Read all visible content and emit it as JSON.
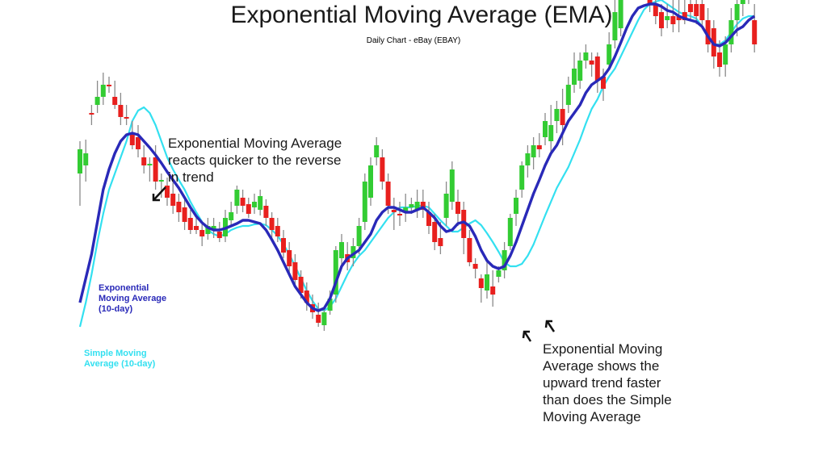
{
  "chart_data": {
    "type": "candlestick",
    "title": "Exponential Moving Average (EMA)",
    "subtitle": "Daily Chart - eBay (EBAY)",
    "candles": [
      {
        "o": 310,
        "c": 340,
        "h": 350,
        "l": 270,
        "up": true
      },
      {
        "o": 320,
        "c": 335,
        "h": 352,
        "l": 300,
        "up": true
      },
      {
        "o": 385,
        "c": 383,
        "h": 395,
        "l": 370,
        "up": false
      },
      {
        "o": 395,
        "c": 405,
        "h": 425,
        "l": 385,
        "up": true
      },
      {
        "o": 405,
        "c": 420,
        "h": 435,
        "l": 395,
        "up": true
      },
      {
        "o": 420,
        "c": 418,
        "h": 430,
        "l": 410,
        "up": false
      },
      {
        "o": 405,
        "c": 395,
        "h": 425,
        "l": 390,
        "up": false
      },
      {
        "o": 395,
        "c": 380,
        "h": 410,
        "l": 370,
        "up": false
      },
      {
        "o": 380,
        "c": 378,
        "h": 395,
        "l": 370,
        "up": false
      },
      {
        "o": 360,
        "c": 345,
        "h": 375,
        "l": 340,
        "up": false
      },
      {
        "o": 355,
        "c": 340,
        "h": 370,
        "l": 330,
        "up": false
      },
      {
        "o": 330,
        "c": 320,
        "h": 345,
        "l": 310,
        "up": false
      },
      {
        "o": 320,
        "c": 322,
        "h": 330,
        "l": 300,
        "up": true
      },
      {
        "o": 330,
        "c": 300,
        "h": 345,
        "l": 290,
        "up": false
      },
      {
        "o": 300,
        "c": 302,
        "h": 310,
        "l": 280,
        "up": true
      },
      {
        "o": 295,
        "c": 280,
        "h": 305,
        "l": 270,
        "up": false
      },
      {
        "o": 285,
        "c": 270,
        "h": 300,
        "l": 260,
        "up": false
      },
      {
        "o": 275,
        "c": 262,
        "h": 285,
        "l": 250,
        "up": false
      },
      {
        "o": 268,
        "c": 250,
        "h": 280,
        "l": 240,
        "up": false
      },
      {
        "o": 255,
        "c": 240,
        "h": 265,
        "l": 235,
        "up": false
      },
      {
        "o": 245,
        "c": 240,
        "h": 255,
        "l": 235,
        "up": false
      },
      {
        "o": 240,
        "c": 232,
        "h": 250,
        "l": 220,
        "up": false
      },
      {
        "o": 235,
        "c": 245,
        "h": 255,
        "l": 228,
        "up": true
      },
      {
        "o": 240,
        "c": 245,
        "h": 255,
        "l": 230,
        "up": true
      },
      {
        "o": 238,
        "c": 230,
        "h": 250,
        "l": 225,
        "up": false
      },
      {
        "o": 232,
        "c": 255,
        "h": 265,
        "l": 225,
        "up": true
      },
      {
        "o": 252,
        "c": 262,
        "h": 275,
        "l": 245,
        "up": true
      },
      {
        "o": 270,
        "c": 290,
        "h": 295,
        "l": 260,
        "up": true
      },
      {
        "o": 280,
        "c": 270,
        "h": 290,
        "l": 262,
        "up": false
      },
      {
        "o": 272,
        "c": 260,
        "h": 280,
        "l": 255,
        "up": false
      },
      {
        "o": 268,
        "c": 275,
        "h": 285,
        "l": 260,
        "up": true
      },
      {
        "o": 265,
        "c": 282,
        "h": 290,
        "l": 258,
        "up": true
      },
      {
        "o": 270,
        "c": 255,
        "h": 278,
        "l": 245,
        "up": false
      },
      {
        "o": 255,
        "c": 240,
        "h": 262,
        "l": 230,
        "up": false
      },
      {
        "o": 245,
        "c": 232,
        "h": 255,
        "l": 225,
        "up": false
      },
      {
        "o": 230,
        "c": 212,
        "h": 240,
        "l": 205,
        "up": false
      },
      {
        "o": 215,
        "c": 195,
        "h": 225,
        "l": 185,
        "up": false
      },
      {
        "o": 200,
        "c": 178,
        "h": 210,
        "l": 170,
        "up": false
      },
      {
        "o": 182,
        "c": 162,
        "h": 190,
        "l": 155,
        "up": false
      },
      {
        "o": 165,
        "c": 150,
        "h": 175,
        "l": 140,
        "up": false
      },
      {
        "o": 148,
        "c": 138,
        "h": 160,
        "l": 130,
        "up": false
      },
      {
        "o": 135,
        "c": 125,
        "h": 150,
        "l": 120,
        "up": false
      },
      {
        "o": 122,
        "c": 138,
        "h": 145,
        "l": 115,
        "up": true
      },
      {
        "o": 140,
        "c": 155,
        "h": 165,
        "l": 135,
        "up": true
      },
      {
        "o": 160,
        "c": 215,
        "h": 220,
        "l": 150,
        "up": true
      },
      {
        "o": 205,
        "c": 225,
        "h": 235,
        "l": 195,
        "up": true
      },
      {
        "o": 210,
        "c": 200,
        "h": 225,
        "l": 190,
        "up": false
      },
      {
        "o": 205,
        "c": 220,
        "h": 230,
        "l": 195,
        "up": true
      },
      {
        "o": 220,
        "c": 245,
        "h": 255,
        "l": 210,
        "up": true
      },
      {
        "o": 250,
        "c": 300,
        "h": 310,
        "l": 240,
        "up": true
      },
      {
        "o": 280,
        "c": 320,
        "h": 330,
        "l": 270,
        "up": true
      },
      {
        "o": 330,
        "c": 345,
        "h": 355,
        "l": 320,
        "up": true
      },
      {
        "o": 330,
        "c": 300,
        "h": 340,
        "l": 290,
        "up": false
      },
      {
        "o": 300,
        "c": 270,
        "h": 310,
        "l": 260,
        "up": false
      },
      {
        "o": 265,
        "c": 262,
        "h": 280,
        "l": 240,
        "up": false
      },
      {
        "o": 260,
        "c": 258,
        "h": 275,
        "l": 245,
        "up": false
      },
      {
        "o": 262,
        "c": 268,
        "h": 285,
        "l": 250,
        "up": true
      },
      {
        "o": 268,
        "c": 272,
        "h": 280,
        "l": 260,
        "up": true
      },
      {
        "o": 265,
        "c": 275,
        "h": 290,
        "l": 255,
        "up": true
      },
      {
        "o": 275,
        "c": 265,
        "h": 290,
        "l": 255,
        "up": false
      },
      {
        "o": 262,
        "c": 245,
        "h": 275,
        "l": 235,
        "up": false
      },
      {
        "o": 250,
        "c": 225,
        "h": 260,
        "l": 215,
        "up": false
      },
      {
        "o": 230,
        "c": 220,
        "h": 250,
        "l": 210,
        "up": false
      },
      {
        "o": 255,
        "c": 285,
        "h": 300,
        "l": 245,
        "up": true
      },
      {
        "o": 275,
        "c": 315,
        "h": 325,
        "l": 265,
        "up": true
      },
      {
        "o": 275,
        "c": 260,
        "h": 290,
        "l": 245,
        "up": false
      },
      {
        "o": 265,
        "c": 230,
        "h": 275,
        "l": 210,
        "up": false
      },
      {
        "o": 230,
        "c": 200,
        "h": 240,
        "l": 195,
        "up": false
      },
      {
        "o": 198,
        "c": 192,
        "h": 205,
        "l": 180,
        "up": false
      },
      {
        "o": 180,
        "c": 168,
        "h": 185,
        "l": 150,
        "up": false
      },
      {
        "o": 165,
        "c": 185,
        "h": 200,
        "l": 155,
        "up": true
      },
      {
        "o": 170,
        "c": 160,
        "h": 190,
        "l": 145,
        "up": false
      },
      {
        "o": 182,
        "c": 190,
        "h": 195,
        "l": 175,
        "up": true
      },
      {
        "o": 190,
        "c": 215,
        "h": 225,
        "l": 180,
        "up": true
      },
      {
        "o": 220,
        "c": 255,
        "h": 260,
        "l": 215,
        "up": true
      },
      {
        "o": 260,
        "c": 280,
        "h": 290,
        "l": 245,
        "up": true
      },
      {
        "o": 290,
        "c": 320,
        "h": 325,
        "l": 280,
        "up": true
      },
      {
        "o": 320,
        "c": 335,
        "h": 345,
        "l": 305,
        "up": true
      },
      {
        "o": 330,
        "c": 345,
        "h": 355,
        "l": 315,
        "up": true
      },
      {
        "o": 345,
        "c": 340,
        "h": 360,
        "l": 330,
        "up": false
      },
      {
        "o": 355,
        "c": 375,
        "h": 385,
        "l": 345,
        "up": true
      },
      {
        "o": 350,
        "c": 370,
        "h": 395,
        "l": 335,
        "up": true
      },
      {
        "o": 375,
        "c": 390,
        "h": 400,
        "l": 360,
        "up": true
      },
      {
        "o": 390,
        "c": 370,
        "h": 415,
        "l": 345,
        "up": false
      },
      {
        "o": 395,
        "c": 420,
        "h": 430,
        "l": 385,
        "up": true
      },
      {
        "o": 420,
        "c": 440,
        "h": 460,
        "l": 410,
        "up": true
      },
      {
        "o": 425,
        "c": 450,
        "h": 460,
        "l": 415,
        "up": true
      },
      {
        "o": 450,
        "c": 460,
        "h": 470,
        "l": 440,
        "up": true
      },
      {
        "o": 450,
        "c": 445,
        "h": 460,
        "l": 430,
        "up": false
      },
      {
        "o": 455,
        "c": 425,
        "h": 460,
        "l": 410,
        "up": false
      },
      {
        "o": 430,
        "c": 415,
        "h": 440,
        "l": 400,
        "up": false
      },
      {
        "o": 445,
        "c": 470,
        "h": 485,
        "l": 440,
        "up": true
      },
      {
        "o": 475,
        "c": 510,
        "h": 525,
        "l": 465,
        "up": true
      },
      {
        "o": 490,
        "c": 540,
        "h": 550,
        "l": 480,
        "up": true
      },
      {
        "o": 560,
        "c": 580,
        "h": 595,
        "l": 545,
        "up": true
      },
      {
        "o": 570,
        "c": 567,
        "h": 600,
        "l": 555,
        "up": false
      },
      {
        "o": 550,
        "c": 570,
        "h": 590,
        "l": 540,
        "up": true
      },
      {
        "o": 575,
        "c": 540,
        "h": 590,
        "l": 530,
        "up": false
      },
      {
        "o": 570,
        "c": 520,
        "h": 585,
        "l": 510,
        "up": false
      },
      {
        "o": 520,
        "c": 505,
        "h": 530,
        "l": 495,
        "up": false
      },
      {
        "o": 510,
        "c": 490,
        "h": 520,
        "l": 480,
        "up": false
      },
      {
        "o": 500,
        "c": 505,
        "h": 520,
        "l": 490,
        "up": true
      },
      {
        "o": 505,
        "c": 495,
        "h": 525,
        "l": 485,
        "up": false
      },
      {
        "o": 505,
        "c": 500,
        "h": 525,
        "l": 485,
        "up": false
      },
      {
        "o": 510,
        "c": 500,
        "h": 525,
        "l": 495,
        "up": false
      },
      {
        "o": 520,
        "c": 510,
        "h": 535,
        "l": 500,
        "up": false
      },
      {
        "o": 520,
        "c": 505,
        "h": 530,
        "l": 495,
        "up": false
      },
      {
        "o": 520,
        "c": 500,
        "h": 530,
        "l": 490,
        "up": false
      },
      {
        "o": 500,
        "c": 470,
        "h": 515,
        "l": 460,
        "up": false
      },
      {
        "o": 490,
        "c": 455,
        "h": 500,
        "l": 440,
        "up": false
      },
      {
        "o": 460,
        "c": 442,
        "h": 475,
        "l": 430,
        "up": false
      },
      {
        "o": 445,
        "c": 470,
        "h": 480,
        "l": 430,
        "up": true
      },
      {
        "o": 470,
        "c": 500,
        "h": 515,
        "l": 460,
        "up": true
      },
      {
        "o": 500,
        "c": 520,
        "h": 530,
        "l": 480,
        "up": true
      },
      {
        "o": 520,
        "c": 540,
        "h": 550,
        "l": 505,
        "up": true
      },
      {
        "o": 535,
        "c": 540,
        "h": 550,
        "l": 520,
        "up": true
      },
      {
        "o": 500,
        "c": 470,
        "h": 520,
        "l": 460,
        "up": false
      }
    ],
    "ema": [
      150,
      180,
      210,
      250,
      290,
      315,
      335,
      350,
      358,
      360,
      358,
      350,
      342,
      333,
      323,
      312,
      302,
      292,
      280,
      268,
      257,
      249,
      243,
      240,
      240,
      242,
      245,
      248,
      252,
      252,
      250,
      248,
      240,
      228,
      215,
      200,
      185,
      170,
      160,
      150,
      143,
      140,
      143,
      155,
      175,
      195,
      205,
      210,
      215,
      225,
      235,
      252,
      262,
      268,
      268,
      265,
      262,
      262,
      265,
      268,
      262,
      255,
      245,
      238,
      240,
      248,
      250,
      245,
      232,
      215,
      202,
      195,
      192,
      195,
      208,
      225,
      245,
      265,
      285,
      302,
      320,
      335,
      345,
      360,
      375,
      385,
      395,
      410,
      420,
      425,
      430,
      440,
      455,
      472,
      490,
      505,
      515,
      518,
      520,
      520,
      517,
      512,
      510,
      505,
      502,
      500,
      498,
      492,
      480,
      470,
      468,
      472,
      480,
      488,
      492,
      500,
      505
    ],
    "sma": [
      120,
      150,
      185,
      225,
      260,
      290,
      310,
      330,
      350,
      375,
      388,
      392,
      385,
      370,
      350,
      330,
      315,
      302,
      290,
      275,
      262,
      250,
      240,
      235,
      232,
      235,
      240,
      243,
      245,
      245,
      247,
      248,
      246,
      240,
      233,
      222,
      210,
      195,
      180,
      165,
      152,
      142,
      140,
      145,
      155,
      170,
      185,
      198,
      208,
      215,
      225,
      235,
      245,
      255,
      262,
      268,
      268,
      268,
      270,
      270,
      268,
      260,
      252,
      245,
      238,
      238,
      243,
      248,
      252,
      246,
      236,
      225,
      213,
      200,
      195,
      195,
      198,
      208,
      222,
      240,
      258,
      275,
      292,
      305,
      318,
      335,
      352,
      372,
      390,
      402,
      418,
      430,
      440,
      455,
      470,
      485,
      500,
      513,
      520,
      523,
      525,
      520,
      515,
      510,
      507,
      505,
      502,
      492,
      480,
      470,
      470,
      475,
      485,
      495,
      502,
      505,
      505
    ]
  },
  "annotations": {
    "top_note": "Exponential Moving Average\nreacts quicker to the reverse\nin trend",
    "bottom_note": "Exponential Moving\nAverage shows the\nupward trend faster\nthan does the Simple\nMoving Average"
  },
  "labels": {
    "ema": "Exponential\nMoving Average\n(10-day)",
    "sma": "Simple Moving\nAverage (10-day)"
  },
  "colors": {
    "up": "#33cc33",
    "down": "#e8201e",
    "wick": "#8a8a8a",
    "ema": "#2929b8",
    "sma": "#33e0f0"
  }
}
